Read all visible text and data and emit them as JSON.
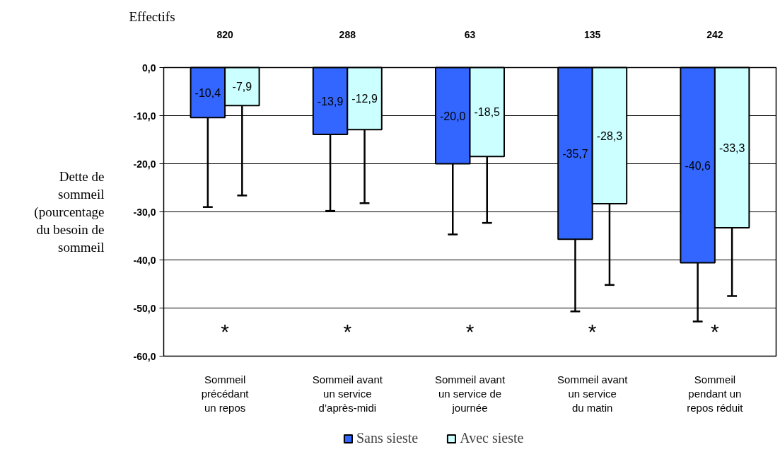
{
  "chart_data": {
    "type": "bar",
    "ylabel": "Dette de\nsommeil\n(pourcentage\ndu besoin de\nsommeil",
    "categories": [
      "Sommeil\nprécédant\nun repos",
      "Sommeil avant\nun service\nd’après-midi",
      "Sommeil avant\nun service de\njournée",
      "Sommeil avant\nun service\ndu matin",
      "Sommeil\npendant un\nrepos réduit"
    ],
    "series": [
      {
        "name": "Sans sieste",
        "color": "#3366ff",
        "values": [
          -10.4,
          -13.9,
          -20.0,
          -35.7,
          -40.6
        ],
        "value_labels": [
          "-10,4",
          "-13,9",
          "-20,0",
          "-35,7",
          "-40,6"
        ],
        "errors": [
          [
            -29.0,
            -10.4
          ],
          [
            -29.8,
            -13.9
          ],
          [
            -34.7,
            -20.0
          ],
          [
            -50.7,
            -35.7
          ],
          [
            -52.8,
            -40.6
          ]
        ]
      },
      {
        "name": "Avec sieste",
        "color": "#ccffff",
        "values": [
          -7.9,
          -12.9,
          -18.5,
          -28.3,
          -33.3
        ],
        "value_labels": [
          "-7,9",
          "-12,9",
          "-18,5",
          "-28,3",
          "-33,3"
        ],
        "errors": [
          [
            -26.6,
            -7.9
          ],
          [
            -28.2,
            -12.9
          ],
          [
            -32.3,
            -18.5
          ],
          [
            -45.2,
            -28.3
          ],
          [
            -47.5,
            -33.3
          ]
        ]
      }
    ],
    "ylim": [
      -60,
      0
    ],
    "yticks": [
      {
        "value": 0,
        "label": "0,0"
      },
      {
        "value": -10,
        "label": "-10,0"
      },
      {
        "value": -20,
        "label": "-20,0"
      },
      {
        "value": -30,
        "label": "-30,0"
      },
      {
        "value": -40,
        "label": "-40,0"
      },
      {
        "value": -50,
        "label": "-50,0"
      },
      {
        "value": -60,
        "label": "-60,0"
      }
    ],
    "grid": "y",
    "legend": "bottom",
    "annotations": [
      "Effectifs",
      "820",
      "288",
      "63",
      "135",
      "242",
      "*",
      "*",
      "*",
      "*",
      "*"
    ]
  }
}
